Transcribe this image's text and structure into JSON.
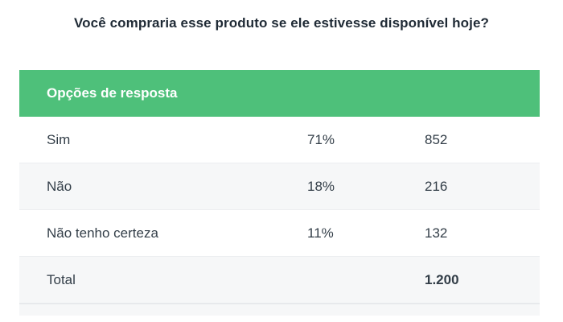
{
  "question": "Você compraria esse produto se ele estivesse disponível hoje?",
  "table": {
    "header": "Opções de resposta",
    "rows": [
      {
        "label": "Sim",
        "percent": "71%",
        "count": "852"
      },
      {
        "label": "Não",
        "percent": "18%",
        "count": "216"
      },
      {
        "label": "Não tenho certeza",
        "percent": "11%",
        "count": "132"
      }
    ],
    "total": {
      "label": "Total",
      "count": "1.200"
    }
  },
  "colors": {
    "header_bg": "#4ec07a",
    "text": "#333e48",
    "alt_row_bg": "#f6f7f8"
  }
}
